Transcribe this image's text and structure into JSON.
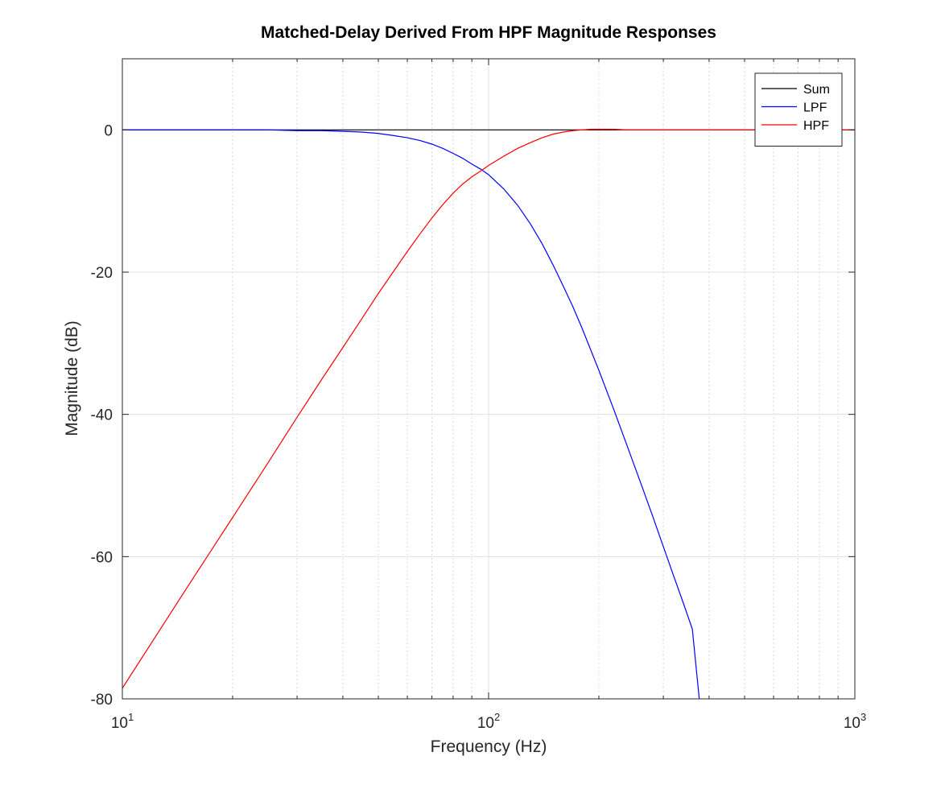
{
  "chart_data": {
    "type": "line",
    "title": "Matched-Delay Derived From HPF Magnitude Responses",
    "xlabel": "Frequency (Hz)",
    "ylabel": "Magnitude (dB)",
    "xscale": "log",
    "xlim": [
      10,
      1000
    ],
    "ylim": [
      -80,
      10
    ],
    "x_ticks": [
      {
        "value": 10,
        "base": "10",
        "exp": "1"
      },
      {
        "value": 100,
        "base": "10",
        "exp": "2"
      },
      {
        "value": 1000,
        "base": "10",
        "exp": "3"
      }
    ],
    "y_ticks": [
      {
        "value": 0,
        "label": "0"
      },
      {
        "value": -20,
        "label": "-20"
      },
      {
        "value": -40,
        "label": "-40"
      },
      {
        "value": -60,
        "label": "-60"
      },
      {
        "value": -80,
        "label": "-80"
      }
    ],
    "grid": true,
    "legend_position": "top-right",
    "series": [
      {
        "name": "Sum",
        "color": "#000000",
        "x": [
          10,
          1000
        ],
        "y": [
          0,
          0
        ]
      },
      {
        "name": "LPF",
        "color": "#0000ff",
        "x": [
          10,
          15,
          20,
          25,
          30,
          35,
          40,
          45,
          50,
          55,
          60,
          65,
          70,
          75,
          80,
          85,
          90,
          95,
          100,
          110,
          120,
          130,
          140,
          150,
          160,
          170,
          180,
          200,
          220,
          240,
          260,
          280,
          300,
          320,
          340,
          360,
          376
        ],
        "y": [
          0,
          0,
          0,
          0,
          -0.1,
          -0.1,
          -0.2,
          -0.3,
          -0.5,
          -0.8,
          -1.1,
          -1.5,
          -2.0,
          -2.6,
          -3.3,
          -4.0,
          -4.8,
          -5.5,
          -6.3,
          -8.3,
          -10.6,
          -13.2,
          -16.0,
          -19.0,
          -22.0,
          -24.9,
          -27.9,
          -33.8,
          -39.4,
          -44.7,
          -49.6,
          -54.2,
          -58.6,
          -62.7,
          -66.5,
          -70.2,
          -80.0
        ]
      },
      {
        "name": "HPF",
        "color": "#ff0000",
        "x": [
          10,
          15,
          20,
          25,
          30,
          35,
          40,
          45,
          50,
          55,
          60,
          65,
          70,
          75,
          80,
          85,
          90,
          95,
          100,
          110,
          120,
          130,
          140,
          150,
          160,
          170,
          180,
          190,
          200,
          220,
          240,
          260,
          300,
          400,
          500,
          700,
          1000
        ],
        "y": [
          -78.5,
          -64.4,
          -54.5,
          -46.8,
          -40.4,
          -35.1,
          -30.6,
          -26.6,
          -23.0,
          -19.9,
          -17.1,
          -14.6,
          -12.4,
          -10.5,
          -8.9,
          -7.6,
          -6.6,
          -5.8,
          -5.0,
          -3.7,
          -2.6,
          -1.8,
          -1.1,
          -0.6,
          -0.3,
          -0.1,
          0.0,
          0.1,
          0.1,
          0.1,
          0.0,
          0.0,
          0.0,
          0.0,
          0.0,
          0.0,
          0.0
        ]
      }
    ]
  }
}
